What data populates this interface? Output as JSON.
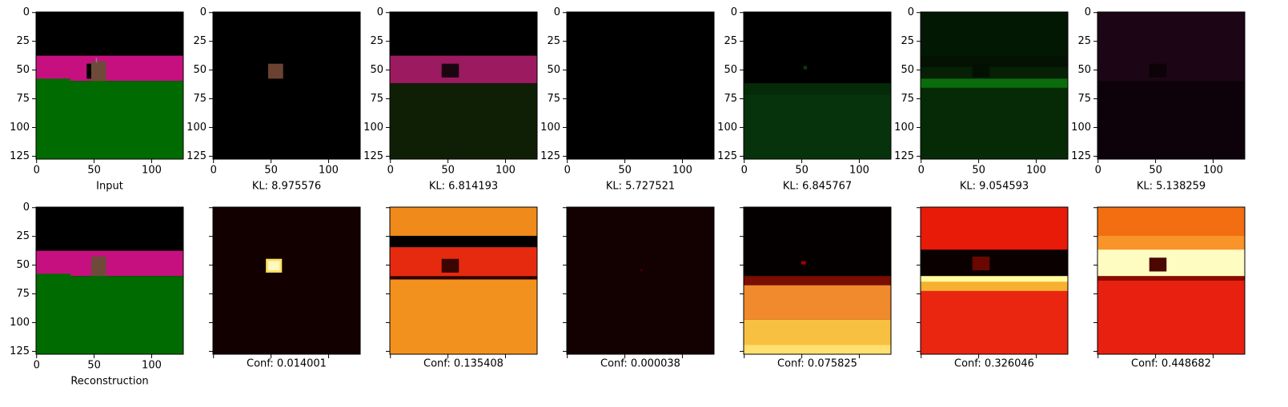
{
  "axes": {
    "xlim": [
      -0.5,
      127.5
    ],
    "ylim": [
      127.5,
      -0.5
    ],
    "xticks": [
      0,
      50,
      100
    ],
    "yticks": [
      0,
      25,
      50,
      75,
      100,
      125
    ]
  },
  "top_row": [
    {
      "label": "Input"
    },
    {
      "label": "KL: 8.975576"
    },
    {
      "label": "KL: 6.814193"
    },
    {
      "label": "KL: 5.727521"
    },
    {
      "label": "KL: 6.845767"
    },
    {
      "label": "KL: 9.054593"
    },
    {
      "label": "KL: 5.138259"
    }
  ],
  "bottom_row": [
    {
      "label": "Reconstruction"
    },
    {
      "label": "Conf: 0.014001"
    },
    {
      "label": "Conf: 0.135408"
    },
    {
      "label": "Conf: 0.000038"
    },
    {
      "label": "Conf: 0.075825"
    },
    {
      "label": "Conf: 0.326046"
    },
    {
      "label": "Conf: 0.448682"
    }
  ]
}
